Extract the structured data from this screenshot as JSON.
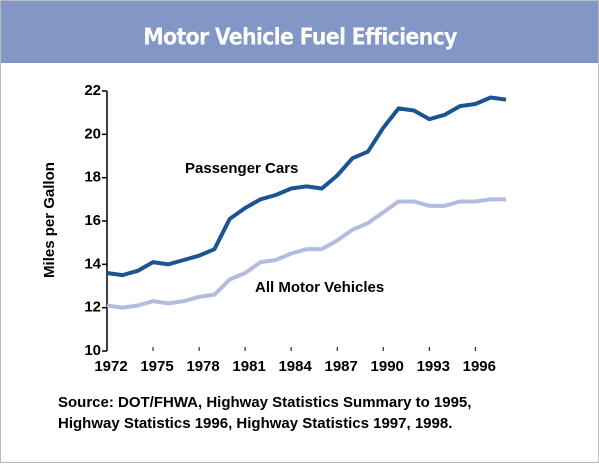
{
  "chart_data": {
    "type": "line",
    "title": "Motor Vehicle Fuel Efficiency",
    "y_label": "Miles per Gallon",
    "source": [
      "Source: DOT/FHWA, Highway Statistics Summary to 1995,",
      "Highway Statistics 1996, Highway Statistics 1997, 1998."
    ],
    "x": [
      1972,
      1973,
      1974,
      1975,
      1976,
      1977,
      1978,
      1979,
      1980,
      1981,
      1982,
      1983,
      1984,
      1985,
      1986,
      1987,
      1988,
      1989,
      1990,
      1991,
      1992,
      1993,
      1994,
      1995,
      1996,
      1997,
      1998
    ],
    "series": [
      {
        "name": "Passenger Cars",
        "color": "#1a5592",
        "values": [
          13.6,
          13.5,
          13.7,
          14.1,
          14.0,
          14.2,
          14.4,
          14.7,
          16.1,
          16.6,
          17.0,
          17.2,
          17.5,
          17.6,
          17.5,
          18.1,
          18.9,
          19.2,
          20.3,
          21.2,
          21.1,
          20.7,
          20.9,
          21.3,
          21.4,
          21.7,
          21.6
        ]
      },
      {
        "name": "All Motor Vehicles",
        "color": "#b3bcdc",
        "values": [
          12.1,
          12.0,
          12.1,
          12.3,
          12.2,
          12.3,
          12.5,
          12.6,
          13.3,
          13.6,
          14.1,
          14.2,
          14.5,
          14.7,
          14.7,
          15.1,
          15.6,
          15.9,
          16.4,
          16.9,
          16.9,
          16.7,
          16.7,
          16.9,
          16.9,
          17.0,
          17.0
        ]
      }
    ],
    "xlim": [
      1972,
      1998
    ],
    "xticks": [
      1972,
      1975,
      1978,
      1981,
      1984,
      1987,
      1990,
      1993,
      1996
    ],
    "ylim": [
      10,
      22
    ],
    "yticks": [
      10,
      12,
      14,
      16,
      18,
      20,
      22
    ],
    "header_color": "#8397c6"
  }
}
